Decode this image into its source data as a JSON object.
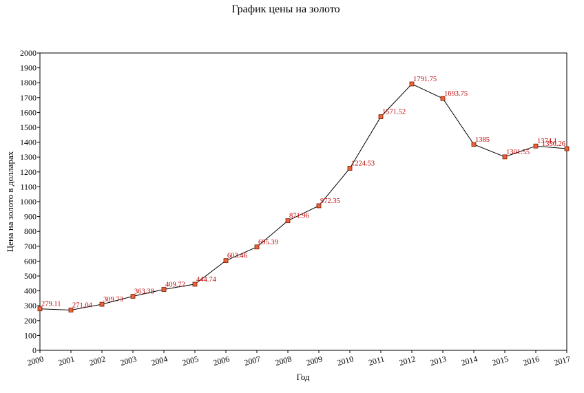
{
  "chart_data": {
    "type": "line",
    "title": "График цены на золото",
    "xlabel": "Год",
    "ylabel": "Цена на золото в долларах",
    "categories": [
      "2000",
      "2001",
      "2002",
      "2003",
      "2004",
      "2005",
      "2006",
      "2007",
      "2008",
      "2009",
      "2010",
      "2011",
      "2012",
      "2013",
      "2014",
      "2015",
      "2016",
      "2017"
    ],
    "series": [
      {
        "values": [
          279.11,
          271.04,
          309.73,
          363.38,
          409.72,
          444.74,
          603.46,
          695.39,
          871.96,
          972.35,
          1224.53,
          1571.52,
          1791.75,
          1693.75,
          1385,
          1301.55,
          1374.1,
          1356.26
        ],
        "labels": [
          "279.11",
          "271.04",
          "309.73",
          "363.38",
          "409.72",
          "444.74",
          "603.46",
          "695.39",
          "871.96",
          "972.35",
          "1224.53",
          "1571.52",
          "1791.75",
          "1693.75",
          "1385",
          "1301.55",
          "1374.1",
          "1356.26"
        ]
      }
    ],
    "ylim": [
      0,
      2000
    ],
    "ytick_step": 100,
    "grid": false,
    "legend": "none",
    "colors": {
      "line": "#000000",
      "marker_fill": "#e8643c",
      "marker_stroke": "#7a1a00",
      "label": "#c00000",
      "axis": "#000000"
    }
  }
}
